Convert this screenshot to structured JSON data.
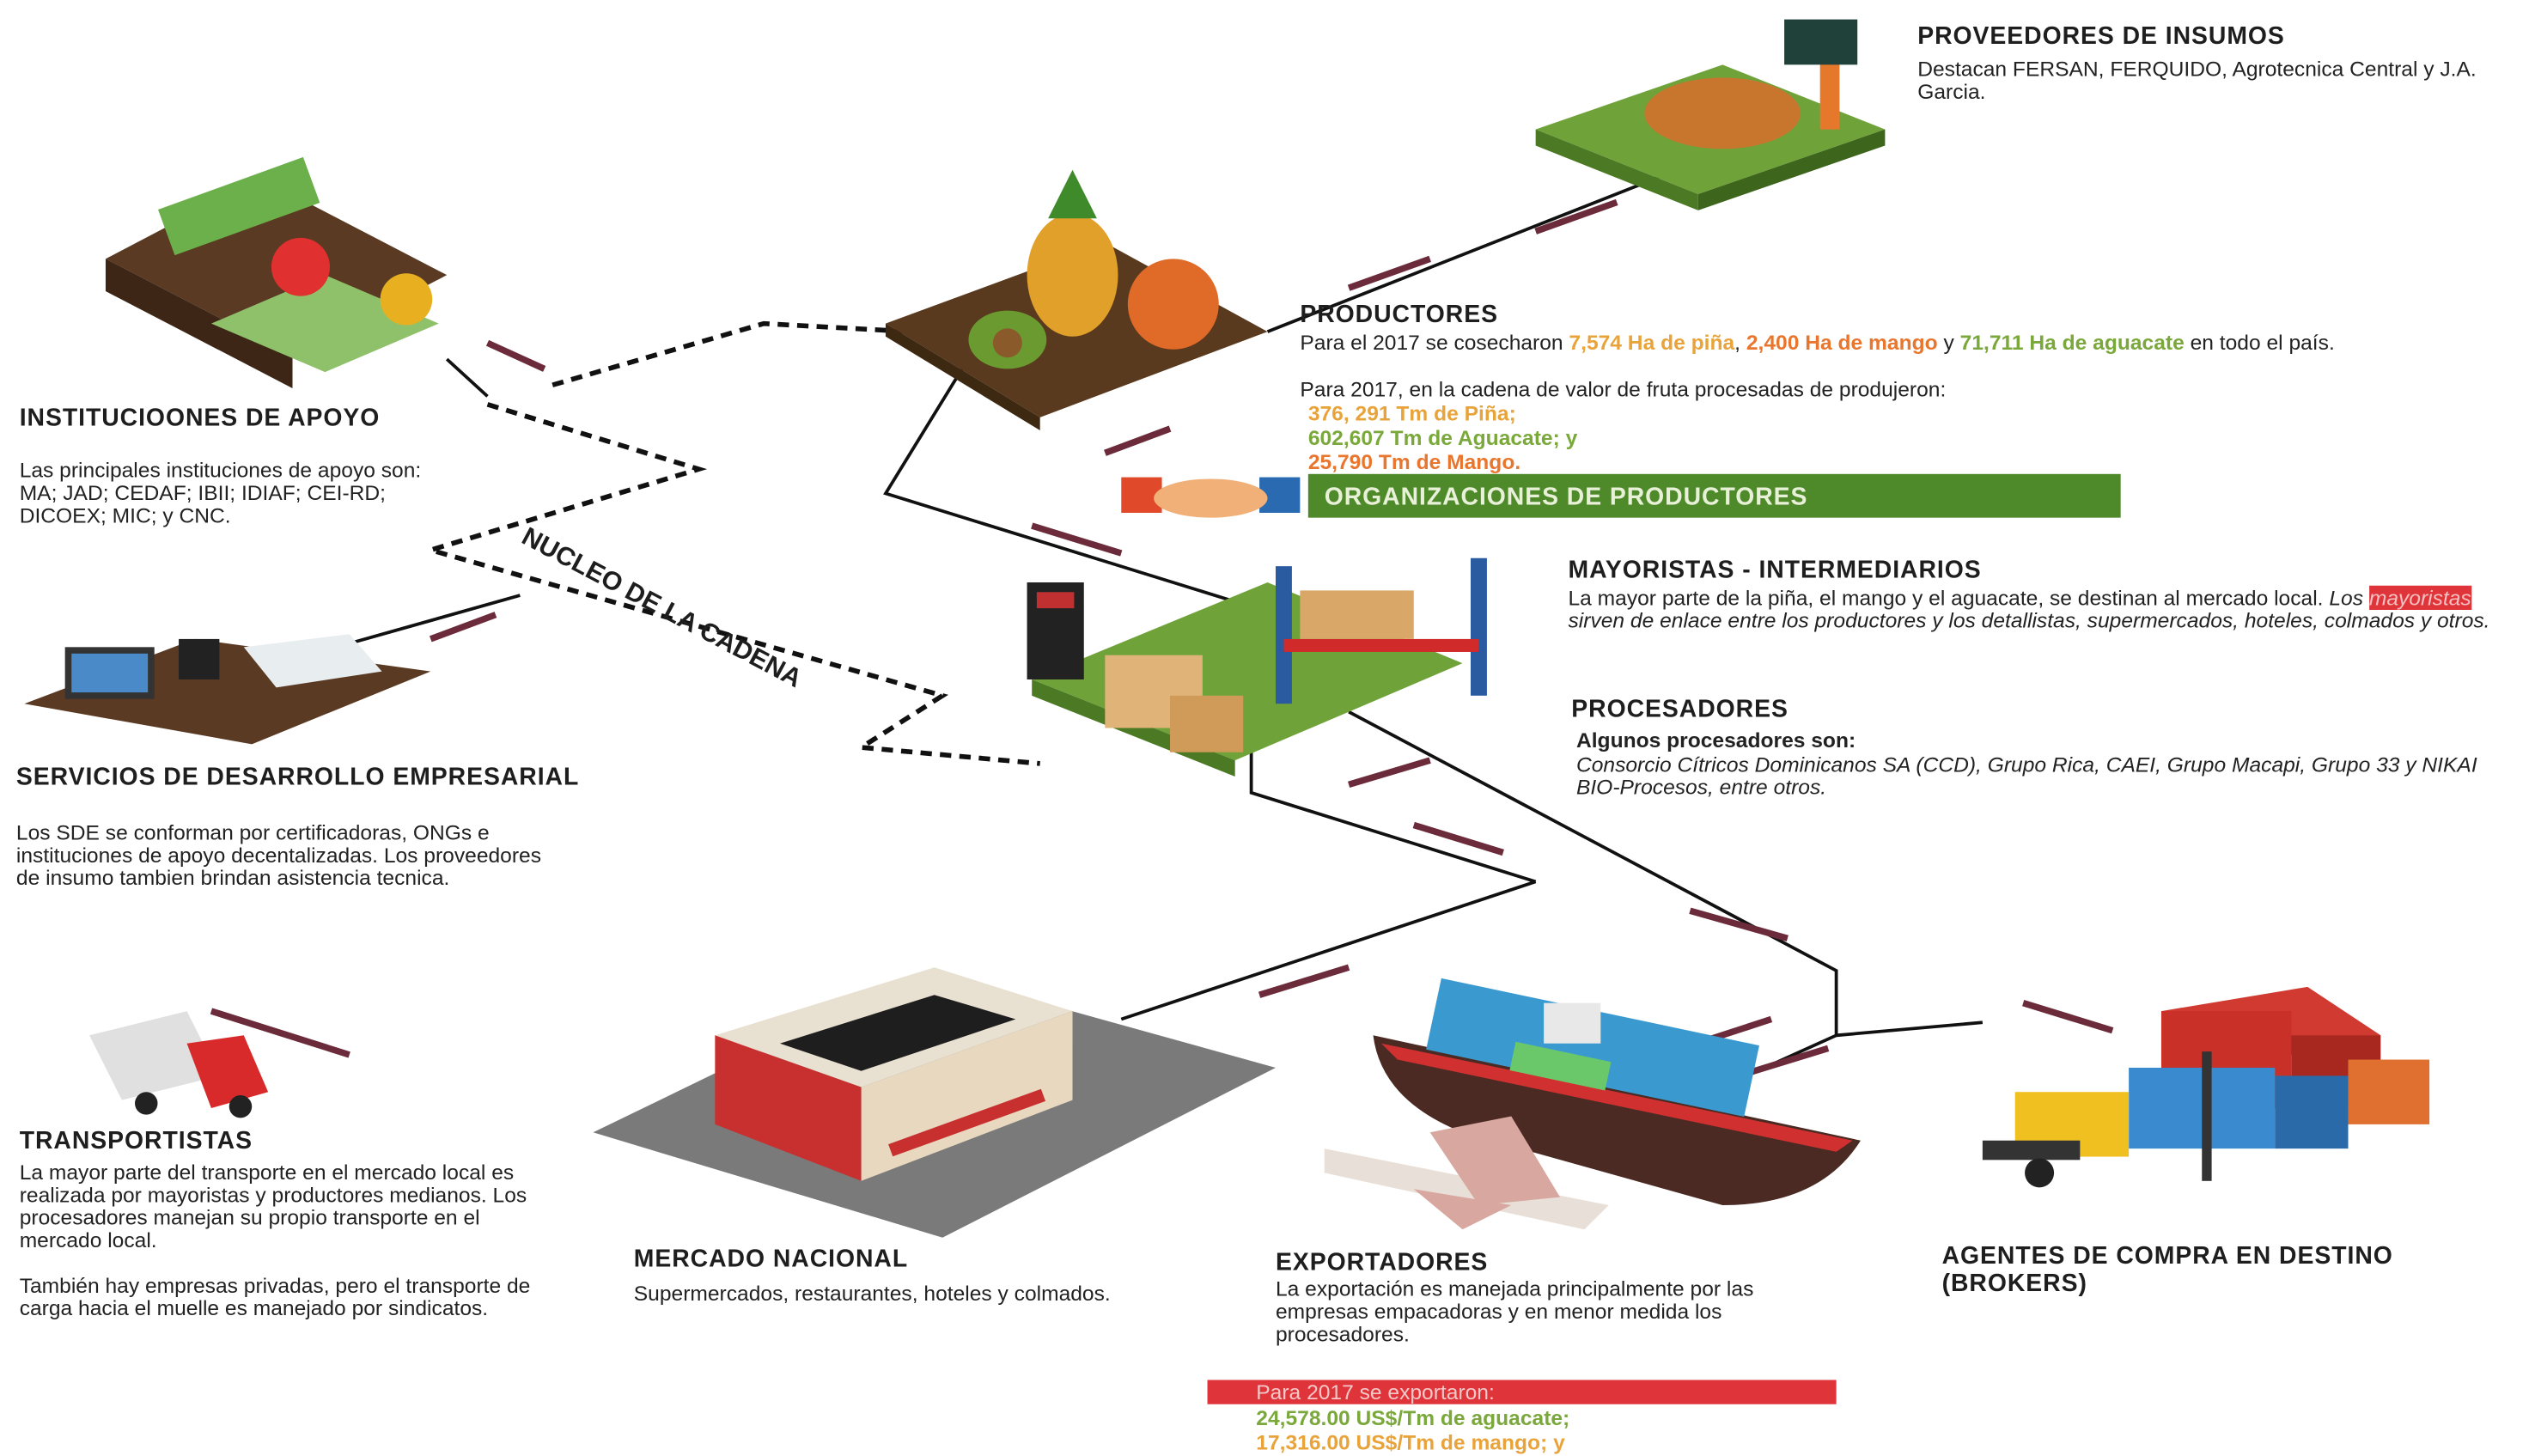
{
  "suppliers": {
    "title": "PROVEEDORES DE INSUMOS",
    "text": "Destacan FERSAN, FERQUIDO, Agrotecnica Central y J.A. Garcia."
  },
  "producers": {
    "title": "PRODUCTORES",
    "harvest": [
      {
        "text": "Para el 2017 se cosecharon "
      },
      {
        "text": "7,574 Ha de piña",
        "color": "#e8a33a"
      },
      {
        "text": ", "
      },
      {
        "text": "2,400 Ha de mango",
        "color": "#e8762e"
      },
      {
        "text": " y "
      },
      {
        "text": "71,711 Ha de aguacate",
        "color": "#7aa83a"
      },
      {
        "text": " en todo el país."
      }
    ],
    "intro": "Para 2017, en la cadena de valor de fruta procesadas de produjeron:",
    "items": [
      {
        "text": "376, 291 Tm de Piña;",
        "color": "#e8a33a"
      },
      {
        "text": "602,607 Tm de Aguacate; y",
        "color": "#7aa83a"
      },
      {
        "text": "25,790 Tm de Mango.",
        "color": "#e8762e"
      }
    ]
  },
  "organizations": {
    "label": "ORGANIZACIONES DE PRODUCTORES"
  },
  "wholesalers": {
    "title": "MAYORISTAS - INTERMEDIARIOS",
    "text": [
      {
        "text": "La mayor parte de la piña, el mango y el aguacate, se destinan al mercado local. "
      },
      {
        "text": "Los ",
        "style": "italic"
      },
      {
        "text": "mayoristas",
        "style": "highlight"
      },
      {
        "text": " sirven de enlace entre los productores y los detallistas, supermercados, hoteles, colmados y otros.",
        "style": "italic"
      }
    ]
  },
  "processors": {
    "title": "PROCESADORES",
    "subtitle": "Algunos procesadores son:",
    "text": "Consorcio Cítricos Dominicanos SA (CCD), Grupo Rica, CAEI, Grupo Macapi, Grupo 33 y NIKAI BIO-Procesos, entre otros."
  },
  "institutions": {
    "title": "INSTITUCIOONES DE APOYO",
    "text": "Las principales instituciones de apoyo son: MA; JAD; CEDAF; IBII; IDIAF; CEI-RD; DICOEX; MIC; y CNC."
  },
  "nucleus": {
    "label": "NUCLEO DE LA CADENA"
  },
  "business_services": {
    "title": "SERVICIOS DE DESARROLLO EMPRESARIAL",
    "text": "Los SDE se conforman por certificadoras, ONGs e instituciones de apoyo decentalizadas. Los proveedores de insumo tambien brindan asistencia tecnica."
  },
  "transporters": {
    "title": "TRANSPORTISTAS",
    "paragraphs": [
      "La mayor parte del transporte en el mercado local es realizada por mayoristas y productores medianos. Los procesadores manejan su propio transporte en el mercado local.",
      "También hay empresas privadas, pero el transporte de carga  hacia el muelle es manejado por sindicatos."
    ]
  },
  "national_market": {
    "title": "MERCADO NACIONAL",
    "text": "Supermercados, restaurantes, hoteles y colmados."
  },
  "exporters": {
    "title": "EXPORTADORES",
    "text": "La exportación es manejada principalmente por las empresas empacadoras y en menor medida los procesadores.",
    "exports_heading": "Para 2017 se exportaron:",
    "exports": [
      {
        "text": "24,578.00 US$/Tm de aguacate;",
        "color": "#7aa83a"
      },
      {
        "text": "17,316.00 US$/Tm de mango; y",
        "color": "#e8a33a"
      }
    ]
  },
  "brokers": {
    "title": "AGENTES DE COMPRA EN DESTINO (BROKERS)"
  }
}
